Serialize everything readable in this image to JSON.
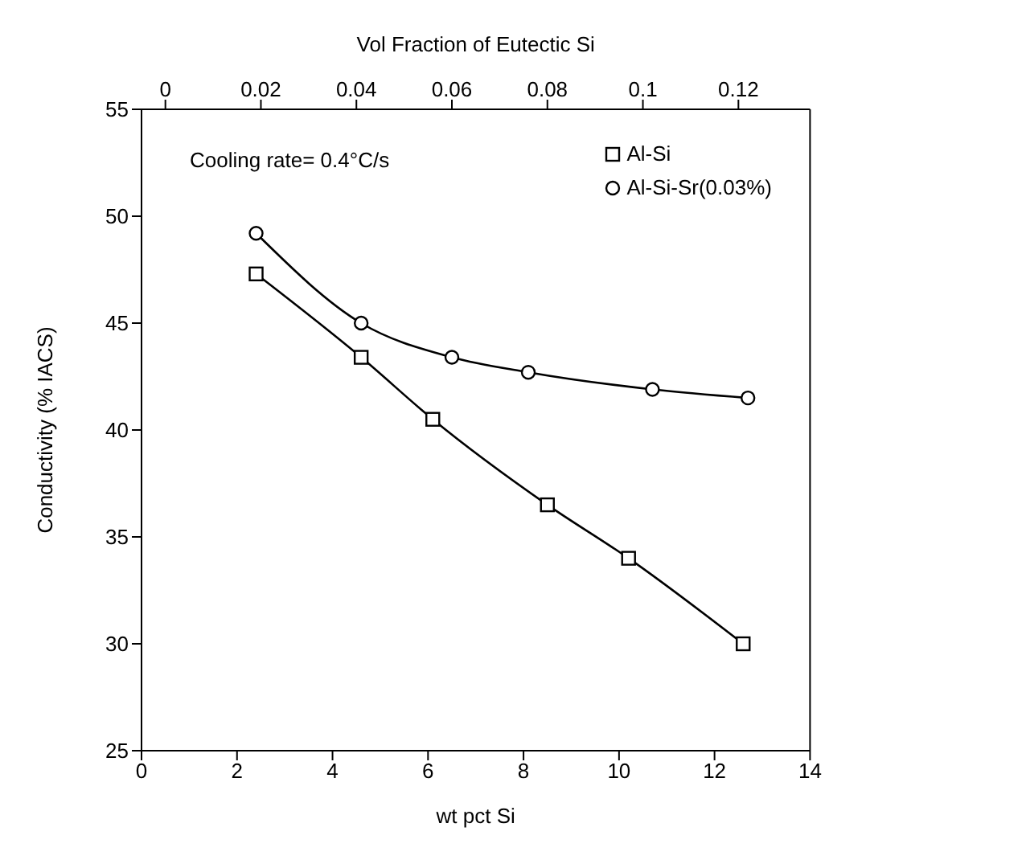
{
  "chart_data": {
    "type": "line",
    "xlabel": "wt pct Si",
    "ylabel": "Conductivity (% IACS)",
    "x2label": "Vol Fraction of Eutectic Si",
    "xlim": [
      0,
      14
    ],
    "xticks": [
      0,
      2,
      4,
      6,
      8,
      10,
      12,
      14
    ],
    "ylim": [
      25,
      55
    ],
    "yticks": [
      25,
      30,
      35,
      40,
      45,
      50,
      55
    ],
    "x2lim": [
      -0.005,
      0.135
    ],
    "x2ticks": [
      0,
      0.02,
      0.04,
      0.06,
      0.08,
      0.1,
      0.12
    ],
    "annotations": [
      "Cooling rate= 0.4°C/s"
    ],
    "legend": "top right",
    "grid": false,
    "line_style": "solid",
    "series": [
      {
        "name": "Al-Si",
        "color": "#000000",
        "marker": "square",
        "x": [
          2.4,
          4.6,
          6.1,
          8.5,
          10.2,
          12.6
        ],
        "values": [
          47.3,
          43.4,
          40.5,
          36.5,
          34,
          30
        ]
      },
      {
        "name": "Al-Si-Sr(0.03%)",
        "color": "#000000",
        "marker": "circle",
        "x": [
          2.4,
          4.6,
          6.5,
          8.1,
          10.7,
          12.7
        ],
        "values": [
          49.2,
          45,
          43.4,
          42.7,
          41.9,
          41.5
        ]
      }
    ]
  }
}
